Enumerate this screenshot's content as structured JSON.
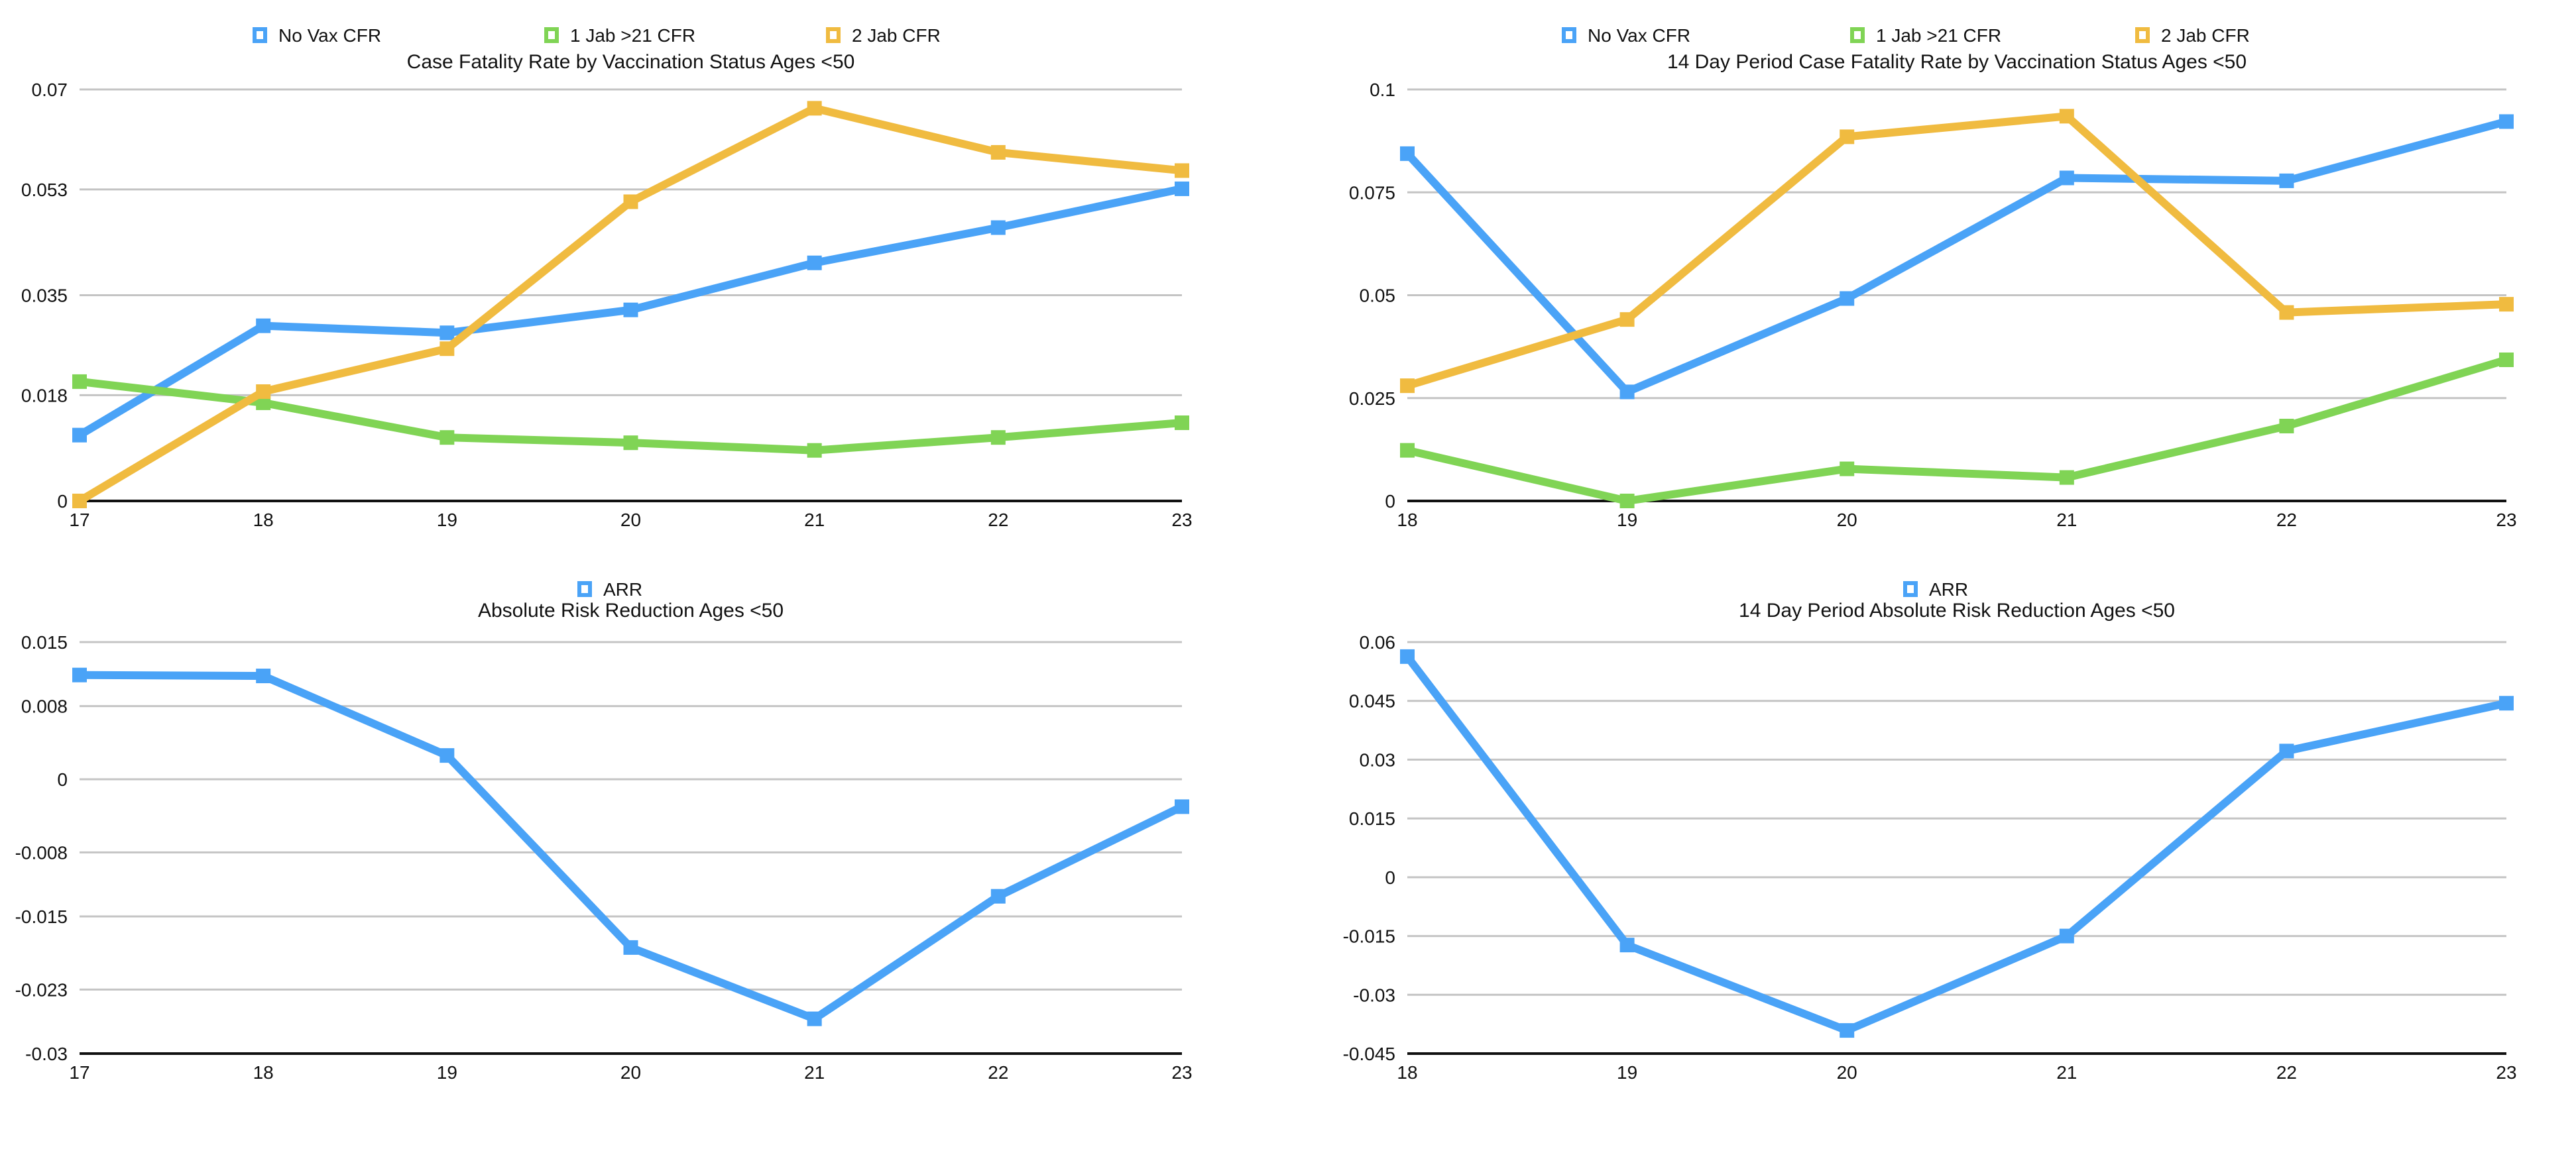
{
  "colors": {
    "no_vax": "#4aa3f7",
    "one_jab": "#80d455",
    "two_jab": "#f0bb40",
    "grid": "#c4c4c4",
    "axis": "#111111"
  },
  "chart_data": [
    {
      "type": "line",
      "title": "Case Fatality Rate by Vaccination Status Ages <50",
      "x": [
        17,
        18,
        19,
        20,
        21,
        22,
        23
      ],
      "ylim": [
        0,
        0.07
      ],
      "yticks": [
        0,
        0.018,
        0.035,
        0.053,
        0.07
      ],
      "grid": true,
      "legend": "top",
      "series": [
        {
          "name": "No Vax CFR",
          "color": "#4aa3f7",
          "values": [
            0.0112,
            0.0298,
            0.0286,
            0.0325,
            0.0405,
            0.0465,
            0.0531
          ]
        },
        {
          "name": "1 Jab >21 CFR",
          "color": "#80d455",
          "values": [
            0.0203,
            0.0167,
            0.0108,
            0.0099,
            0.0086,
            0.0108,
            0.0133
          ]
        },
        {
          "name": "2 Jab CFR",
          "color": "#f0bb40",
          "values": [
            0.0,
            0.0186,
            0.0259,
            0.0509,
            0.0668,
            0.0593,
            0.0562
          ]
        }
      ]
    },
    {
      "type": "line",
      "title": "14 Day Period Case Fatality Rate by Vaccination Status Ages <50",
      "x": [
        18,
        19,
        20,
        21,
        22,
        23
      ],
      "ylim": [
        0,
        0.1
      ],
      "yticks": [
        0,
        0.025,
        0.05,
        0.075,
        0.1
      ],
      "grid": true,
      "legend": "top",
      "series": [
        {
          "name": "No Vax CFR",
          "color": "#4aa3f7",
          "values": [
            0.0844,
            0.0265,
            0.0492,
            0.0785,
            0.0778,
            0.0922
          ]
        },
        {
          "name": "1 Jab >21 CFR",
          "color": "#80d455",
          "values": [
            0.0123,
            0.0,
            0.0078,
            0.0057,
            0.0182,
            0.0343
          ]
        },
        {
          "name": "2 Jab CFR",
          "color": "#f0bb40",
          "values": [
            0.028,
            0.0441,
            0.0885,
            0.0935,
            0.0458,
            0.0478
          ]
        }
      ]
    },
    {
      "type": "line",
      "title": "Absolute Risk Reduction Ages <50",
      "x": [
        17,
        18,
        19,
        20,
        21,
        22,
        23
      ],
      "ylim": [
        -0.03,
        0.015
      ],
      "yticks": [
        -0.03,
        -0.023,
        -0.015,
        -0.008,
        0,
        0.008,
        0.015
      ],
      "grid": true,
      "legend": "top",
      "series": [
        {
          "name": "ARR",
          "color": "#4aa3f7",
          "values": [
            0.0114,
            0.0113,
            0.0026,
            -0.0184,
            -0.0262,
            -0.0128,
            -0.003
          ]
        }
      ]
    },
    {
      "type": "line",
      "title": "14 Day Period Absolute Risk Reduction Ages <50",
      "x": [
        18,
        19,
        20,
        21,
        22,
        23
      ],
      "ylim": [
        -0.045,
        0.06
      ],
      "yticks": [
        -0.045,
        -0.03,
        -0.015,
        0,
        0.015,
        0.03,
        0.045,
        0.06
      ],
      "grid": true,
      "legend": "top",
      "series": [
        {
          "name": "ARR",
          "color": "#4aa3f7",
          "values": [
            0.0563,
            -0.0173,
            -0.0391,
            -0.015,
            0.0322,
            0.0444
          ]
        }
      ]
    }
  ]
}
